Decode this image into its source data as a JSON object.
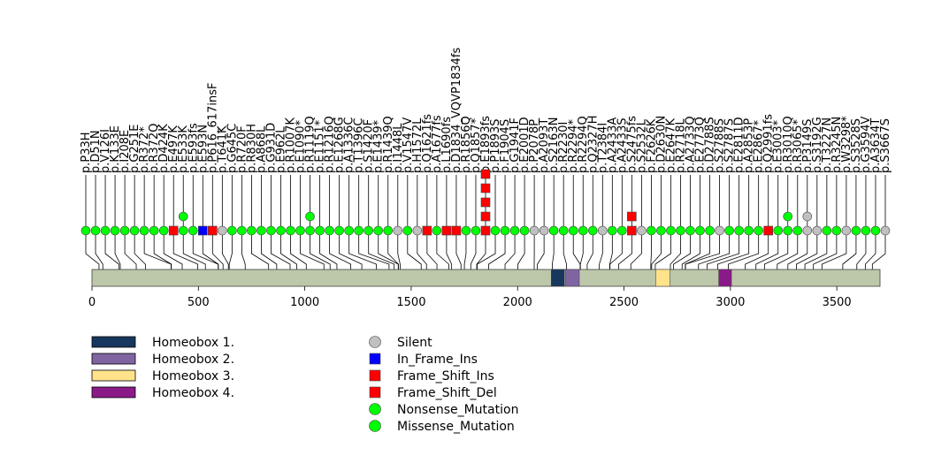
{
  "chart_data": {
    "type": "lollipop",
    "protein_length": 3703,
    "x_axis": {
      "ticks": [
        0,
        500,
        1000,
        1500,
        2000,
        2500,
        3000,
        3500
      ],
      "range": [
        0,
        3703
      ]
    },
    "colors": {
      "backbone": "#bdc7aa",
      "silent": "#c0c0c0",
      "in_frame_ins": "#0000ff",
      "frame_shift": "#ff0000",
      "nonsense": "#00ff00",
      "missense": "#00ff00"
    },
    "domains": [
      {
        "name": "Homeobox 1.",
        "start": 2158,
        "end": 2220,
        "color": "#17375e"
      },
      {
        "name": "Homeobox 2.",
        "start": 2225,
        "end": 2290,
        "color": "#8064a2"
      },
      {
        "name": "Homeobox 3.",
        "start": 2650,
        "end": 2715,
        "color": "#ffe28a"
      },
      {
        "name": "Homeobox 4.",
        "start": 2945,
        "end": 3005,
        "color": "#8b1a89"
      }
    ],
    "domain_legend": [
      "Homeobox 1.",
      "Homeobox 2.",
      "Homeobox 3.",
      "Homeobox 4."
    ],
    "mutation_legend": [
      {
        "label": "Silent",
        "shape": "circle",
        "color": "#c0c0c0"
      },
      {
        "label": "In_Frame_Ins",
        "shape": "square",
        "color": "#0000ff"
      },
      {
        "label": "Frame_Shift_Ins",
        "shape": "square",
        "color": "#ff0000"
      },
      {
        "label": "Frame_Shift_Del",
        "shape": "square",
        "color": "#ff0000"
      },
      {
        "label": "Nonsense_Mutation",
        "shape": "circle",
        "color": "#00ff00"
      },
      {
        "label": "Missense_Mutation",
        "shape": "circle",
        "color": "#00ff00"
      }
    ],
    "mutations": [
      {
        "label": "p.P33H",
        "pos": 33,
        "stack": [
          {
            "shape": "circle",
            "color": "#00ff00"
          }
        ]
      },
      {
        "label": "p.D51N",
        "pos": 51,
        "stack": [
          {
            "shape": "circle",
            "color": "#00ff00"
          }
        ]
      },
      {
        "label": "p.V126I",
        "pos": 126,
        "stack": [
          {
            "shape": "circle",
            "color": "#00ff00"
          }
        ]
      },
      {
        "label": "p.K133E",
        "pos": 133,
        "stack": [
          {
            "shape": "circle",
            "color": "#00ff00"
          }
        ]
      },
      {
        "label": "p.I208E",
        "pos": 208,
        "stack": [
          {
            "shape": "circle",
            "color": "#00ff00"
          }
        ]
      },
      {
        "label": "p.G251E",
        "pos": 251,
        "stack": [
          {
            "shape": "circle",
            "color": "#00ff00"
          }
        ]
      },
      {
        "label": "p.R372*",
        "pos": 372,
        "stack": [
          {
            "shape": "circle",
            "color": "#00ff00"
          }
        ]
      },
      {
        "label": "p.R372Q",
        "pos": 373,
        "stack": [
          {
            "shape": "circle",
            "color": "#00ff00"
          }
        ]
      },
      {
        "label": "p.D424K",
        "pos": 424,
        "stack": [
          {
            "shape": "circle",
            "color": "#00ff00"
          }
        ]
      },
      {
        "label": "p.E497K",
        "pos": 497,
        "stack": [
          {
            "shape": "square",
            "color": "#ff0000"
          }
        ]
      },
      {
        "label": "p.E533K",
        "pos": 533,
        "stack": [
          {
            "shape": "circle",
            "color": "#00ff00"
          },
          {
            "shape": "circle",
            "color": "#00ff00"
          }
        ]
      },
      {
        "label": "p.E593fs",
        "pos": 593,
        "stack": [
          {
            "shape": "circle",
            "color": "#00ff00"
          }
        ]
      },
      {
        "label": "p.E593N",
        "pos": 594,
        "stack": [
          {
            "shape": "square",
            "color": "#0000ff"
          }
        ]
      },
      {
        "label": "p.P616_617insF",
        "pos": 616,
        "stack": [
          {
            "shape": "square",
            "color": "#ff0000"
          }
        ]
      },
      {
        "label": "p.T641K",
        "pos": 641,
        "stack": [
          {
            "shape": "circle",
            "color": "#c0c0c0"
          }
        ]
      },
      {
        "label": "p.G645C",
        "pos": 645,
        "stack": [
          {
            "shape": "circle",
            "color": "#00ff00"
          }
        ]
      },
      {
        "label": "p.R720F",
        "pos": 720,
        "stack": [
          {
            "shape": "circle",
            "color": "#00ff00"
          }
        ]
      },
      {
        "label": "p.R830H",
        "pos": 830,
        "stack": [
          {
            "shape": "circle",
            "color": "#00ff00"
          }
        ]
      },
      {
        "label": "p.A868L",
        "pos": 868,
        "stack": [
          {
            "shape": "circle",
            "color": "#00ff00"
          }
        ]
      },
      {
        "label": "p.G931D",
        "pos": 931,
        "stack": [
          {
            "shape": "circle",
            "color": "#00ff00"
          }
        ]
      },
      {
        "label": "p.E962L",
        "pos": 962,
        "stack": [
          {
            "shape": "circle",
            "color": "#00ff00"
          }
        ]
      },
      {
        "label": "p.R1007K",
        "pos": 1007,
        "stack": [
          {
            "shape": "circle",
            "color": "#00ff00"
          }
        ]
      },
      {
        "label": "p.E1090*",
        "pos": 1090,
        "stack": [
          {
            "shape": "circle",
            "color": "#00ff00"
          }
        ]
      },
      {
        "label": "p.R1119Q",
        "pos": 1119,
        "stack": [
          {
            "shape": "circle",
            "color": "#00ff00"
          },
          {
            "shape": "circle",
            "color": "#00ff00"
          }
        ]
      },
      {
        "label": "p.E1151*",
        "pos": 1151,
        "stack": [
          {
            "shape": "circle",
            "color": "#00ff00"
          }
        ]
      },
      {
        "label": "p.R1216Q",
        "pos": 1216,
        "stack": [
          {
            "shape": "circle",
            "color": "#00ff00"
          }
        ]
      },
      {
        "label": "p.E1268G",
        "pos": 1268,
        "stack": [
          {
            "shape": "circle",
            "color": "#00ff00"
          }
        ]
      },
      {
        "label": "p.A1336C",
        "pos": 1336,
        "stack": [
          {
            "shape": "circle",
            "color": "#00ff00"
          }
        ]
      },
      {
        "label": "p.T1396C",
        "pos": 1396,
        "stack": [
          {
            "shape": "circle",
            "color": "#00ff00"
          }
        ]
      },
      {
        "label": "p.S1420F",
        "pos": 1420,
        "stack": [
          {
            "shape": "circle",
            "color": "#00ff00"
          }
        ]
      },
      {
        "label": "p.E1439*",
        "pos": 1439,
        "stack": [
          {
            "shape": "circle",
            "color": "#00ff00"
          }
        ]
      },
      {
        "label": "p.R1439Q",
        "pos": 1440,
        "stack": [
          {
            "shape": "circle",
            "color": "#00ff00"
          }
        ]
      },
      {
        "label": "p.I1448L",
        "pos": 1448,
        "stack": [
          {
            "shape": "circle",
            "color": "#c0c0c0"
          }
        ]
      },
      {
        "label": "p.V1547V",
        "pos": 1547,
        "stack": [
          {
            "shape": "circle",
            "color": "#00ff00"
          }
        ]
      },
      {
        "label": "p.H1572L",
        "pos": 1572,
        "stack": [
          {
            "shape": "circle",
            "color": "#c0c0c0"
          }
        ]
      },
      {
        "label": "p.Q1621fs",
        "pos": 1621,
        "stack": [
          {
            "shape": "square",
            "color": "#ff0000"
          }
        ]
      },
      {
        "label": "p.A1677fs",
        "pos": 1677,
        "stack": [
          {
            "shape": "circle",
            "color": "#00ff00"
          }
        ]
      },
      {
        "label": "p.L1690fs",
        "pos": 1690,
        "stack": [
          {
            "shape": "square",
            "color": "#ff0000"
          }
        ]
      },
      {
        "label": "p.D1834_VQVP1834fs",
        "pos": 1734,
        "stack": [
          {
            "shape": "square",
            "color": "#ff0000"
          }
        ]
      },
      {
        "label": "p.R1856Q",
        "pos": 1750,
        "stack": [
          {
            "shape": "circle",
            "color": "#00ff00"
          }
        ]
      },
      {
        "label": "p.Q1857*",
        "pos": 1780,
        "stack": [
          {
            "shape": "circle",
            "color": "#00ff00"
          }
        ]
      },
      {
        "label": "p.E1893fs",
        "pos": 1808,
        "stack": [
          {
            "shape": "square",
            "color": "#ff0000"
          },
          {
            "shape": "square",
            "color": "#ff0000"
          },
          {
            "shape": "square",
            "color": "#ff0000"
          },
          {
            "shape": "square",
            "color": "#ff0000"
          },
          {
            "shape": "square",
            "color": "#ff0000"
          }
        ]
      },
      {
        "label": "p.P1893S",
        "pos": 1810,
        "stack": [
          {
            "shape": "circle",
            "color": "#00ff00"
          }
        ]
      },
      {
        "label": "p.F1904S",
        "pos": 1864,
        "stack": [
          {
            "shape": "circle",
            "color": "#00ff00"
          }
        ]
      },
      {
        "label": "p.G1941F",
        "pos": 1941,
        "stack": [
          {
            "shape": "circle",
            "color": "#00ff00"
          }
        ]
      },
      {
        "label": "p.E2001D",
        "pos": 2001,
        "stack": [
          {
            "shape": "circle",
            "color": "#00ff00"
          }
        ]
      },
      {
        "label": "p.P2078P",
        "pos": 2078,
        "stack": [
          {
            "shape": "circle",
            "color": "#c0c0c0"
          }
        ]
      },
      {
        "label": "p.A2093T",
        "pos": 2093,
        "stack": [
          {
            "shape": "circle",
            "color": "#c0c0c0"
          }
        ]
      },
      {
        "label": "p.S2163N",
        "pos": 2163,
        "stack": [
          {
            "shape": "circle",
            "color": "#00ff00"
          }
        ]
      },
      {
        "label": "p.R2230I",
        "pos": 2230,
        "stack": [
          {
            "shape": "circle",
            "color": "#00ff00"
          }
        ]
      },
      {
        "label": "p.R2294*",
        "pos": 2294,
        "stack": [
          {
            "shape": "circle",
            "color": "#00ff00"
          }
        ]
      },
      {
        "label": "p.R2294Q",
        "pos": 2295,
        "stack": [
          {
            "shape": "circle",
            "color": "#00ff00"
          }
        ]
      },
      {
        "label": "p.Q2327H",
        "pos": 2327,
        "stack": [
          {
            "shape": "circle",
            "color": "#00ff00"
          }
        ]
      },
      {
        "label": "p.T2384I",
        "pos": 2384,
        "stack": [
          {
            "shape": "circle",
            "color": "#c0c0c0"
          }
        ]
      },
      {
        "label": "p.A2433A",
        "pos": 2433,
        "stack": [
          {
            "shape": "circle",
            "color": "#00ff00"
          }
        ]
      },
      {
        "label": "p.A2433S",
        "pos": 2434,
        "stack": [
          {
            "shape": "circle",
            "color": "#00ff00"
          }
        ]
      },
      {
        "label": "p.S2475fs",
        "pos": 2475,
        "stack": [
          {
            "shape": "square",
            "color": "#ff0000"
          },
          {
            "shape": "square",
            "color": "#ff0000"
          }
        ]
      },
      {
        "label": "p.S2532L",
        "pos": 2532,
        "stack": [
          {
            "shape": "circle",
            "color": "#c0c0c0"
          }
        ]
      },
      {
        "label": "p.F2626K",
        "pos": 2626,
        "stack": [
          {
            "shape": "circle",
            "color": "#00ff00"
          }
        ]
      },
      {
        "label": "p.D2630N",
        "pos": 2630,
        "stack": [
          {
            "shape": "circle",
            "color": "#00ff00"
          }
        ]
      },
      {
        "label": "p.E2647K",
        "pos": 2647,
        "stack": [
          {
            "shape": "circle",
            "color": "#00ff00"
          }
        ]
      },
      {
        "label": "p.R2718L",
        "pos": 2718,
        "stack": [
          {
            "shape": "circle",
            "color": "#00ff00"
          }
        ]
      },
      {
        "label": "p.A2733Q",
        "pos": 2733,
        "stack": [
          {
            "shape": "circle",
            "color": "#00ff00"
          }
        ]
      },
      {
        "label": "p.E2773Q",
        "pos": 2773,
        "stack": [
          {
            "shape": "circle",
            "color": "#00ff00"
          }
        ]
      },
      {
        "label": "p.D2788S",
        "pos": 2788,
        "stack": [
          {
            "shape": "circle",
            "color": "#00ff00"
          }
        ]
      },
      {
        "label": "p.S2788S",
        "pos": 2789,
        "stack": [
          {
            "shape": "circle",
            "color": "#c0c0c0"
          }
        ]
      },
      {
        "label": "p.S2787S",
        "pos": 2850,
        "stack": [
          {
            "shape": "circle",
            "color": "#00ff00"
          }
        ]
      },
      {
        "label": "p.E2811D",
        "pos": 2890,
        "stack": [
          {
            "shape": "circle",
            "color": "#00ff00"
          }
        ]
      },
      {
        "label": "p.A2853P",
        "pos": 2940,
        "stack": [
          {
            "shape": "circle",
            "color": "#00ff00"
          }
        ]
      },
      {
        "label": "p.E2867*",
        "pos": 2990,
        "stack": [
          {
            "shape": "circle",
            "color": "#00ff00"
          }
        ]
      },
      {
        "label": "p.Q2991fs",
        "pos": 3070,
        "stack": [
          {
            "shape": "square",
            "color": "#ff0000"
          }
        ]
      },
      {
        "label": "p.E3003*",
        "pos": 3120,
        "stack": [
          {
            "shape": "circle",
            "color": "#00ff00"
          }
        ]
      },
      {
        "label": "p.R3010Q",
        "pos": 3160,
        "stack": [
          {
            "shape": "circle",
            "color": "#00ff00"
          },
          {
            "shape": "circle",
            "color": "#00ff00"
          }
        ]
      },
      {
        "label": "p.R3065*",
        "pos": 3220,
        "stack": [
          {
            "shape": "circle",
            "color": "#00ff00"
          }
        ]
      },
      {
        "label": "p.P3149S",
        "pos": 3270,
        "stack": [
          {
            "shape": "circle",
            "color": "#c0c0c0"
          },
          {
            "shape": "circle",
            "color": "#c0c0c0"
          }
        ]
      },
      {
        "label": "p.S3192G",
        "pos": 3310,
        "stack": [
          {
            "shape": "circle",
            "color": "#c0c0c0"
          }
        ]
      },
      {
        "label": "p.T3227N",
        "pos": 3350,
        "stack": [
          {
            "shape": "circle",
            "color": "#00ff00"
          }
        ]
      },
      {
        "label": "p.R3245N",
        "pos": 3390,
        "stack": [
          {
            "shape": "circle",
            "color": "#00ff00"
          }
        ]
      },
      {
        "label": "p.W3298*",
        "pos": 3430,
        "stack": [
          {
            "shape": "circle",
            "color": "#c0c0c0"
          }
        ]
      },
      {
        "label": "p.S3528S",
        "pos": 3528,
        "stack": [
          {
            "shape": "circle",
            "color": "#00ff00"
          }
        ]
      },
      {
        "label": "p.G3594V",
        "pos": 3594,
        "stack": [
          {
            "shape": "circle",
            "color": "#00ff00"
          }
        ]
      },
      {
        "label": "p.A3634T",
        "pos": 3634,
        "stack": [
          {
            "shape": "circle",
            "color": "#00ff00"
          }
        ]
      },
      {
        "label": "p.S3667S",
        "pos": 3667,
        "stack": [
          {
            "shape": "circle",
            "color": "#c0c0c0"
          }
        ]
      }
    ]
  }
}
